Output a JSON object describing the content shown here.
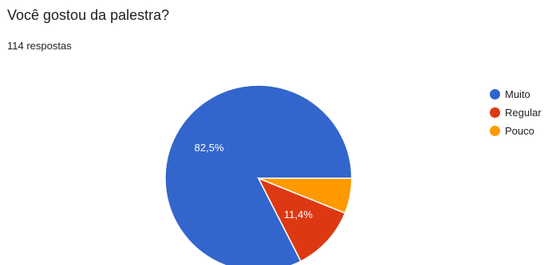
{
  "question": {
    "title": "Você gostou da palestra?",
    "response_count": "114 respostas"
  },
  "chart_data": {
    "type": "pie",
    "title": "Você gostou da palestra?",
    "subtitle": "114 respostas",
    "legend_position": "right",
    "slices": [
      {
        "name": "Muito",
        "value": 82.5,
        "label": "82,5%",
        "color": "#3366cc"
      },
      {
        "name": "Regular",
        "value": 11.4,
        "label": "11,4%",
        "color": "#dc3912"
      },
      {
        "name": "Pouco",
        "value": 6.1,
        "label": "",
        "color": "#ff9900"
      }
    ]
  }
}
